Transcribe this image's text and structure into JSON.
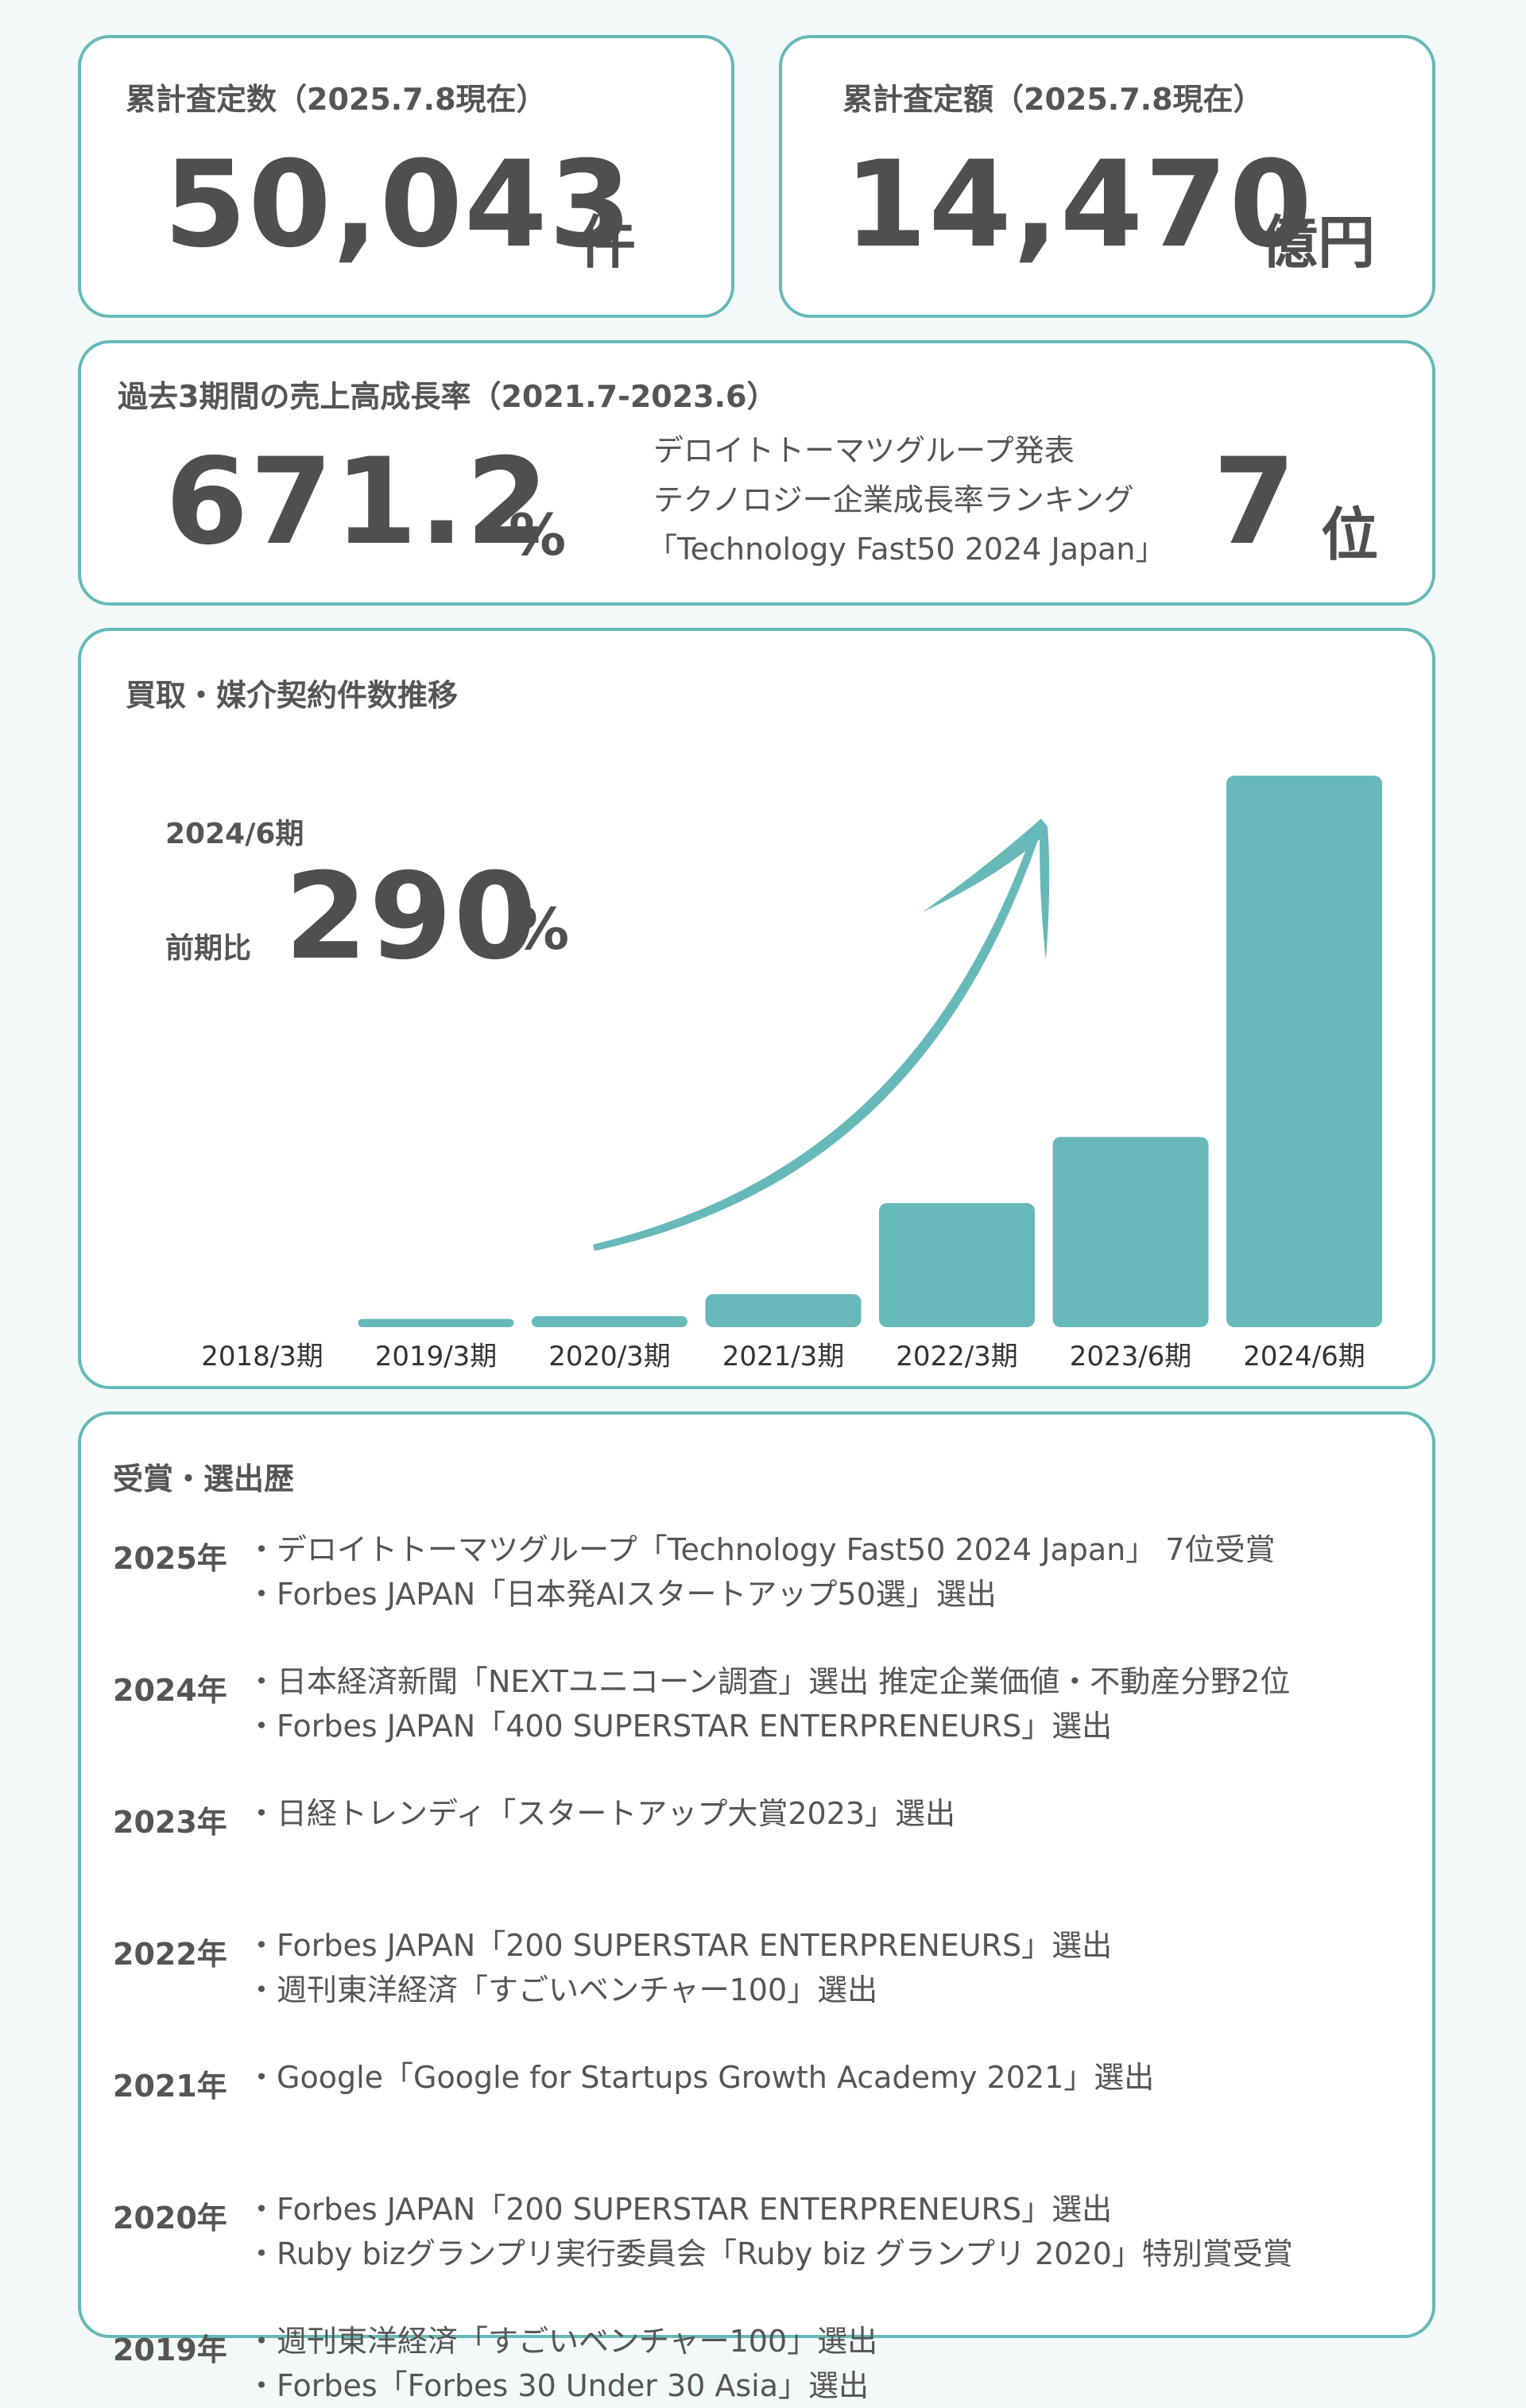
{
  "colors": {
    "accent": "#66b9b8",
    "text": "#555555",
    "card_bg": "#ffffff",
    "page_bg": "#f3f8f8"
  },
  "stat_count": {
    "label": "累計査定数（2025.7.8現在）",
    "value": "50,043",
    "unit": "件"
  },
  "stat_amount": {
    "label": "累計査定額（2025.7.8現在）",
    "value": "14,470",
    "unit": "億円"
  },
  "growth": {
    "label": "過去3期間の売上高成長率（2021.7-2023.6）",
    "value": "671.2",
    "unit": "%",
    "ranking_lines": [
      "デロイトトーマツグループ発表",
      "テクノロジー企業成長率ランキング",
      "「Technology Fast50 2024 Japan」"
    ],
    "rank_value": "7",
    "rank_unit": "位"
  },
  "chart_section": {
    "title": "買取・媒介契約件数推移",
    "period_label": "2024/6期",
    "ratio_label": "前期比",
    "ratio_value": "290",
    "ratio_unit": "%"
  },
  "chart_data": {
    "type": "bar",
    "title": "買取・媒介契約件数推移",
    "categories": [
      "2018/3期",
      "2019/3期",
      "2020/3期",
      "2021/3期",
      "2022/3期",
      "2023/6期",
      "2024/6期"
    ],
    "values": [
      0,
      1.5,
      2,
      6,
      22.5,
      34.5,
      100
    ],
    "ylim": [
      0,
      100
    ],
    "y_axis_shown": false,
    "grid": false,
    "trend_arrow": true
  },
  "awards": {
    "title": "受賞・選出歴",
    "entries": [
      {
        "year": "2025年",
        "items": [
          "・デロイトトーマツグループ「Technology Fast50 2024 Japan」 7位受賞",
          "・Forbes JAPAN「日本発AIスタートアップ50選」選出"
        ]
      },
      {
        "year": "2024年",
        "items": [
          "・日本経済新聞「NEXTユニコーン調査」選出 推定企業価値・不動産分野2位",
          "・Forbes JAPAN「400 SUPERSTAR ENTERPRENEURS」選出"
        ]
      },
      {
        "year": "2023年",
        "items": [
          "・日経トレンディ「スタートアップ大賞2023」選出"
        ]
      },
      {
        "year": "2022年",
        "items": [
          "・Forbes JAPAN「200 SUPERSTAR ENTERPRENEURS」選出",
          "・週刊東洋経済「すごいベンチャー100」選出"
        ]
      },
      {
        "year": "2021年",
        "items": [
          "・Google「Google for Startups Growth Academy 2021」選出"
        ]
      },
      {
        "year": "2020年",
        "items": [
          "・Forbes JAPAN「200 SUPERSTAR ENTERPRENEURS」選出",
          "・Ruby bizグランプリ実行委員会「Ruby biz グランプリ 2020」特別賞受賞"
        ]
      },
      {
        "year": "2019年",
        "items": [
          "・週刊東洋経済「すごいベンチャー100」選出",
          "・Forbes「Forbes 30 Under 30 Asia」選出"
        ]
      }
    ]
  }
}
